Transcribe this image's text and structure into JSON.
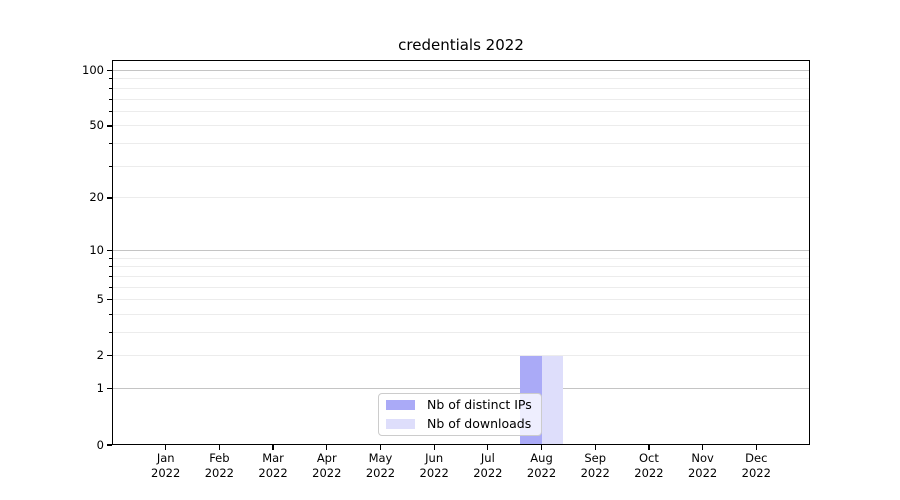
{
  "chart_data": {
    "type": "bar",
    "title": "credentials 2022",
    "categories": [
      "Jan",
      "Feb",
      "Mar",
      "Apr",
      "May",
      "Jun",
      "Jul",
      "Aug",
      "Sep",
      "Oct",
      "Nov",
      "Dec"
    ],
    "category_year": "2022",
    "series": [
      {
        "name": "Nb of distinct IPs",
        "color": "#aaaaf7",
        "values": [
          0,
          0,
          0,
          0,
          0,
          0,
          0,
          2,
          0,
          0,
          0,
          0
        ]
      },
      {
        "name": "Nb of downloads",
        "color": "#dedefb",
        "values": [
          0,
          0,
          0,
          0,
          0,
          0,
          0,
          2,
          0,
          0,
          0,
          0
        ]
      }
    ],
    "y_axis": {
      "scale": "log1p",
      "lim": [
        0,
        113
      ],
      "labeled_ticks": [
        0,
        1,
        2,
        5,
        10,
        20,
        50,
        100
      ],
      "major_gridlines": [
        1,
        10,
        100
      ],
      "minor_gridlines": [
        2,
        3,
        4,
        5,
        6,
        7,
        8,
        9,
        20,
        30,
        40,
        50,
        60,
        70,
        80,
        90
      ],
      "minor_ticks": [
        3,
        4,
        6,
        7,
        8,
        9,
        30,
        40,
        60,
        70,
        80,
        90
      ]
    },
    "legend": {
      "position": "lower center"
    },
    "grid": true
  },
  "colors": {
    "bar_distinct_ips": "#aaaaf7",
    "bar_downloads": "#dedefb",
    "major_grid": "#c4c4c4",
    "minor_grid": "#ececec",
    "spine": "#000000",
    "text": "#000000",
    "legend_border": "#cccccc",
    "background": "#ffffff"
  }
}
